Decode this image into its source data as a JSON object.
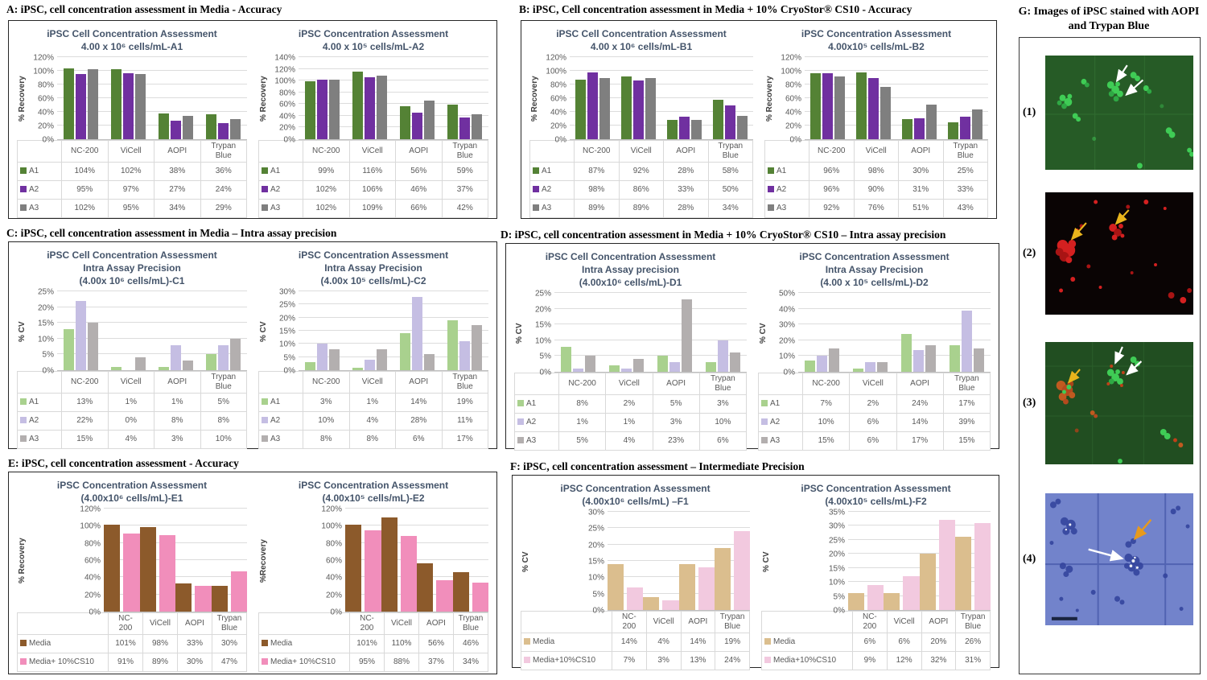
{
  "panels": {
    "A": {
      "header": "A: iPSC, cell concentration  assessment in Media  - Accuracy"
    },
    "B": {
      "header": "B: iPSC, Cell concentration  assessment in Media  + 10% CryoStor® CS10 - Accuracy"
    },
    "C": {
      "header": "C: iPSC, cell concentration  assessment in Media  – Intra  assay precision"
    },
    "D": {
      "header": "D: iPSC, cell concentration  assessment in Media  + 10% CryoStor® CS10 – Intra  assay precision"
    },
    "E": {
      "header": "E:  iPSC, cell concentration  assessment - Accuracy"
    },
    "F": {
      "header": "F:  iPSC, cell concentration  assessment – Intermediate  Precision"
    },
    "G": {
      "header": "G:  Images  of iPSC stained  with  AOPI and  Trypan  Blue",
      "image_labels": [
        "(1)",
        "(2)",
        "(3)",
        "(4)"
      ]
    }
  },
  "chart_data": [
    {
      "id": "A1",
      "panel": "A",
      "type": "bar",
      "title_lines": [
        "iPSC Cell Concentration Assessment",
        "4.00 x 10⁶ cells/mL-A1"
      ],
      "ylabel": "% Recovery",
      "unit": "%",
      "ylim": [
        0,
        120
      ],
      "ystep": 20,
      "grid": true,
      "categories": [
        [
          "NC-200"
        ],
        [
          "ViCell"
        ],
        [
          "AOPI"
        ],
        [
          "Trypan",
          "Blue"
        ]
      ],
      "series": [
        {
          "name": "A1",
          "color": "#548235",
          "values": [
            104,
            102,
            38,
            36
          ]
        },
        {
          "name": "A2",
          "color": "#7030A0",
          "values": [
            95,
            97,
            27,
            24
          ]
        },
        {
          "name": "A3",
          "color": "#7F7F7F",
          "values": [
            102,
            95,
            34,
            29
          ]
        }
      ]
    },
    {
      "id": "A2",
      "panel": "A",
      "type": "bar",
      "title_lines": [
        "iPSC Concentration Assessment",
        "4.00 x 10⁵ cells/mL-A2"
      ],
      "ylabel": "% Recovery",
      "unit": "%",
      "ylim": [
        0,
        140
      ],
      "ystep": 20,
      "grid": true,
      "categories": [
        [
          "NC-200"
        ],
        [
          "ViCell"
        ],
        [
          "AOPI"
        ],
        [
          "Trypan",
          "Blue"
        ]
      ],
      "series": [
        {
          "name": "A1",
          "color": "#548235",
          "values": [
            99,
            116,
            56,
            59
          ]
        },
        {
          "name": "A2",
          "color": "#7030A0",
          "values": [
            102,
            106,
            46,
            37
          ]
        },
        {
          "name": "A3",
          "color": "#7F7F7F",
          "values": [
            102,
            109,
            66,
            42
          ]
        }
      ]
    },
    {
      "id": "B1",
      "panel": "B",
      "type": "bar",
      "title_lines": [
        "iPSC Cell Concentration Assessment",
        "4.00 x 10⁶ cells/mL-B1"
      ],
      "ylabel": "% Recovery",
      "unit": "%",
      "ylim": [
        0,
        120
      ],
      "ystep": 20,
      "grid": true,
      "categories": [
        [
          "NC-200"
        ],
        [
          "ViCell"
        ],
        [
          "AOPI"
        ],
        [
          "Trypan",
          "Blue"
        ]
      ],
      "series": [
        {
          "name": "A1",
          "color": "#548235",
          "values": [
            87,
            92,
            28,
            58
          ]
        },
        {
          "name": "A2",
          "color": "#7030A0",
          "values": [
            98,
            86,
            33,
            50
          ]
        },
        {
          "name": "A3",
          "color": "#7F7F7F",
          "values": [
            89,
            89,
            28,
            34
          ]
        }
      ]
    },
    {
      "id": "B2",
      "panel": "B",
      "type": "bar",
      "title_lines": [
        "iPSC Concentration Assessment",
        "4.00x10⁵ cells/mL-B2"
      ],
      "ylabel": "% Recovery",
      "unit": "%",
      "ylim": [
        0,
        120
      ],
      "ystep": 20,
      "grid": true,
      "categories": [
        [
          "NC-200"
        ],
        [
          "ViCell"
        ],
        [
          "AOPI"
        ],
        [
          "Trypan",
          "Blue"
        ]
      ],
      "series": [
        {
          "name": "A1",
          "color": "#548235",
          "values": [
            96,
            98,
            30,
            25
          ]
        },
        {
          "name": "A2",
          "color": "#7030A0",
          "values": [
            96,
            90,
            31,
            33
          ]
        },
        {
          "name": "A3",
          "color": "#7F7F7F",
          "values": [
            92,
            76,
            51,
            43
          ]
        }
      ]
    },
    {
      "id": "C1",
      "panel": "C",
      "type": "bar",
      "title_lines": [
        "iPSC Cell Concentration Assessment",
        "Intra Assay Precision",
        "(4.00x 10⁶ cells/mL)-C1"
      ],
      "ylabel": "% CV",
      "unit": "%",
      "ylim": [
        0,
        25
      ],
      "ystep": 5,
      "grid": true,
      "categories": [
        [
          "NC-200"
        ],
        [
          "ViCell"
        ],
        [
          "AOPI"
        ],
        [
          "Trypan",
          "Blue"
        ]
      ],
      "series": [
        {
          "name": "A1",
          "color": "#A9D18E",
          "values": [
            13,
            1,
            1,
            5
          ]
        },
        {
          "name": "A2",
          "color": "#C5BEE3",
          "values": [
            22,
            0,
            8,
            8
          ]
        },
        {
          "name": "A3",
          "color": "#B3AFAF",
          "values": [
            15,
            4,
            3,
            10
          ]
        }
      ]
    },
    {
      "id": "C2",
      "panel": "C",
      "type": "bar",
      "title_lines": [
        "iPSC Concentration Assessment",
        "Intra Assay Precision",
        "(4.00x 10⁵ cells/mL)-C2"
      ],
      "ylabel": "% CV",
      "unit": "%",
      "ylim": [
        0,
        30
      ],
      "ystep": 5,
      "grid": true,
      "categories": [
        [
          "NC-200"
        ],
        [
          "ViCell"
        ],
        [
          "AOPI"
        ],
        [
          "Trypan",
          "Blue"
        ]
      ],
      "series": [
        {
          "name": "A1",
          "color": "#A9D18E",
          "values": [
            3,
            1,
            14,
            19
          ]
        },
        {
          "name": "A2",
          "color": "#C5BEE3",
          "values": [
            10,
            4,
            28,
            11
          ]
        },
        {
          "name": "A3",
          "color": "#B3AFAF",
          "values": [
            8,
            8,
            6,
            17
          ]
        }
      ]
    },
    {
      "id": "D1",
      "panel": "D",
      "type": "bar",
      "title_lines": [
        "iPSC Cell Concentration Assessment",
        "Intra Assay precision",
        "(4.00x10⁶ cells/mL)-D1"
      ],
      "ylabel": "% CV",
      "unit": "%",
      "ylim": [
        0,
        25
      ],
      "ystep": 5,
      "grid": true,
      "categories": [
        [
          "NC-200"
        ],
        [
          "ViCell"
        ],
        [
          "AOPI"
        ],
        [
          "Trypan",
          "Blue"
        ]
      ],
      "series": [
        {
          "name": "A1",
          "color": "#A9D18E",
          "values": [
            8,
            2,
            5,
            3
          ]
        },
        {
          "name": "A2",
          "color": "#C5BEE3",
          "values": [
            1,
            1,
            3,
            10
          ]
        },
        {
          "name": "A3",
          "color": "#B3AFAF",
          "values": [
            5,
            4,
            23,
            6
          ]
        }
      ]
    },
    {
      "id": "D2",
      "panel": "D",
      "type": "bar",
      "title_lines": [
        "iPSC Concentration Assessment",
        "Intra Assay Precision",
        "(4.00 x 10⁵ cells/mL)-D2"
      ],
      "ylabel": "% CV",
      "unit": "%",
      "ylim": [
        0,
        50
      ],
      "ystep": 10,
      "grid": true,
      "categories": [
        [
          "NC-200"
        ],
        [
          "ViCell"
        ],
        [
          "AOPI"
        ],
        [
          "Trypan",
          "Blue"
        ]
      ],
      "series": [
        {
          "name": "A1",
          "color": "#A9D18E",
          "values": [
            7,
            2,
            24,
            17
          ]
        },
        {
          "name": "A2",
          "color": "#C5BEE3",
          "values": [
            10,
            6,
            14,
            39
          ]
        },
        {
          "name": "A3",
          "color": "#B3AFAF",
          "values": [
            15,
            6,
            17,
            15
          ]
        }
      ]
    },
    {
      "id": "E1",
      "panel": "E",
      "type": "bar",
      "title_lines": [
        "iPSC Concentration Assessment",
        "(4.00x10⁶ cells/mL)-E1"
      ],
      "ylabel": "% Recovery",
      "unit": "%",
      "ylim": [
        0,
        120
      ],
      "ystep": 20,
      "grid": true,
      "categories": [
        [
          "NC-",
          "200"
        ],
        [
          "ViCell"
        ],
        [
          "AOPI"
        ],
        [
          "Trypan",
          "Blue"
        ]
      ],
      "series": [
        {
          "name": "Media",
          "color": "#8C5A2B",
          "values": [
            101,
            98,
            33,
            30
          ]
        },
        {
          "name": "Media+ 10%CS10",
          "color": "#F18EBB",
          "values": [
            91,
            89,
            30,
            47
          ]
        }
      ]
    },
    {
      "id": "E2",
      "panel": "E",
      "type": "bar",
      "title_lines": [
        "iPSC Concentration Assessment",
        "(4.00x10⁵ cells/mL)-E2"
      ],
      "ylabel": "%Recovery",
      "unit": "%",
      "ylim": [
        0,
        120
      ],
      "ystep": 20,
      "grid": true,
      "categories": [
        [
          "NC-",
          "200"
        ],
        [
          "ViCell"
        ],
        [
          "AOPI"
        ],
        [
          "Trypan",
          "Blue"
        ]
      ],
      "series": [
        {
          "name": "Media",
          "color": "#8C5A2B",
          "values": [
            101,
            110,
            56,
            46
          ]
        },
        {
          "name": "Media+ 10%CS10",
          "color": "#F18EBB",
          "values": [
            95,
            88,
            37,
            34
          ]
        }
      ]
    },
    {
      "id": "F1",
      "panel": "F",
      "type": "bar",
      "title_lines": [
        "iPSC Concentration Assessment",
        "(4.00x10⁶ cells/mL) –F1"
      ],
      "ylabel": "% CV",
      "unit": "%",
      "ylim": [
        0,
        30
      ],
      "ystep": 5,
      "grid": true,
      "categories": [
        [
          "NC-",
          "200"
        ],
        [
          "ViCell"
        ],
        [
          "AOPI"
        ],
        [
          "Trypan",
          "Blue"
        ]
      ],
      "series": [
        {
          "name": "Media",
          "color": "#DBBE8E",
          "values": [
            14,
            4,
            14,
            19
          ]
        },
        {
          "name": "Media+10%CS10",
          "color": "#F2C9DF",
          "values": [
            7,
            3,
            13,
            24
          ]
        }
      ]
    },
    {
      "id": "F2",
      "panel": "F",
      "type": "bar",
      "title_lines": [
        "iPSC Concentration Assessment",
        "(4.00x10⁵ cells/mL)-F2"
      ],
      "ylabel": "% CV",
      "unit": "%",
      "ylim": [
        0,
        35
      ],
      "ystep": 5,
      "grid": true,
      "categories": [
        [
          "NC-",
          "200"
        ],
        [
          "ViCell"
        ],
        [
          "AOPI"
        ],
        [
          "Trypan",
          "Blue"
        ]
      ],
      "series": [
        {
          "name": "Media",
          "color": "#DBBE8E",
          "values": [
            6,
            6,
            20,
            26
          ]
        },
        {
          "name": "Media+10%CS10",
          "color": "#F2C9DF",
          "values": [
            9,
            12,
            32,
            31
          ]
        }
      ]
    }
  ]
}
